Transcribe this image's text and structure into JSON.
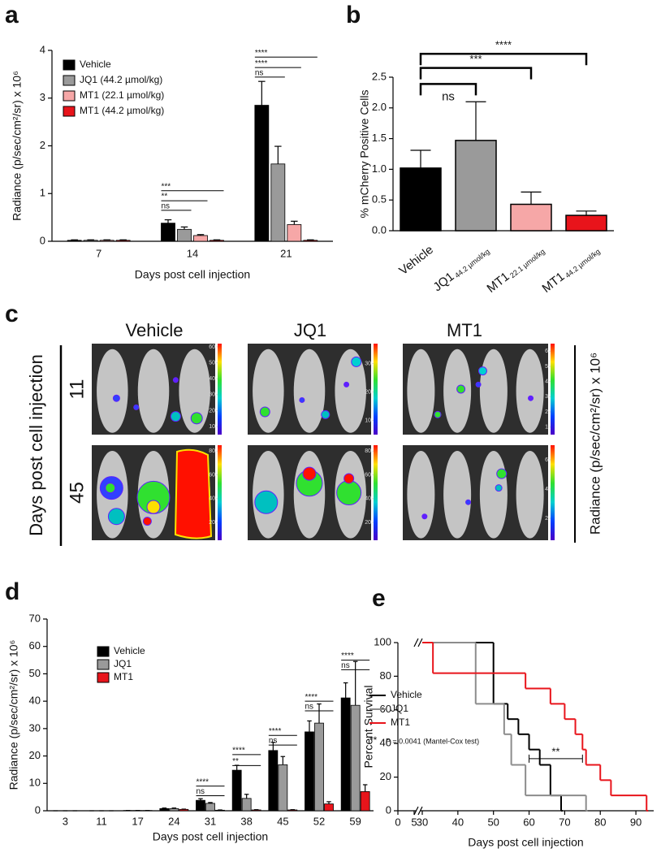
{
  "chart_data": [
    {
      "type": "bar",
      "panel_label": "a",
      "ylabel": "Radiance (p/sec/cm²/sr) x 10⁶",
      "xlabel": "Days post cell injection",
      "categories": [
        "7",
        "14",
        "21"
      ],
      "series": [
        {
          "name": "Vehicle",
          "color": "#000000",
          "values": [
            0.02,
            0.38,
            2.85
          ],
          "errors": [
            0.01,
            0.07,
            0.5
          ]
        },
        {
          "name": "JQ1 (44.2 µmol/kg)",
          "color": "#9a9a9a",
          "values": [
            0.02,
            0.25,
            1.62
          ],
          "errors": [
            0.01,
            0.05,
            0.37
          ]
        },
        {
          "name": "MT1 (22.1 µmol/kg)",
          "color": "#f6a7a7",
          "values": [
            0.02,
            0.12,
            0.35
          ],
          "errors": [
            0.01,
            0.02,
            0.07
          ]
        },
        {
          "name": "MT1 (44.2 µmol/kg)",
          "color": "#e8141b",
          "values": [
            0.02,
            0.02,
            0.02
          ],
          "errors": [
            0.01,
            0.01,
            0.01
          ]
        }
      ],
      "ylim": [
        0,
        4
      ],
      "yticks": [
        0,
        1,
        2,
        3,
        4
      ],
      "legend": "upper left",
      "annotations": [
        {
          "text": "***",
          "category": "14",
          "y": 1.06
        },
        {
          "text": "**",
          "category": "14",
          "y": 0.85
        },
        {
          "text": "ns",
          "category": "14",
          "y": 0.65
        },
        {
          "text": "****",
          "category": "21",
          "y": 3.86
        },
        {
          "text": "****",
          "category": "21",
          "y": 3.64
        },
        {
          "text": "ns",
          "category": "21",
          "y": 3.44
        }
      ]
    },
    {
      "type": "bar",
      "panel_label": "b",
      "ylabel": "% mCherry Positive Cells",
      "categories": [
        "Vehicle",
        "JQ1",
        "MT1",
        "MT1"
      ],
      "category_subscripts": [
        null,
        "44.2 µmol/kg",
        "22.1 µmol/kg",
        "44.2 µmol/kg"
      ],
      "values": [
        1.02,
        1.47,
        0.43,
        0.25
      ],
      "errors": [
        0.29,
        0.63,
        0.2,
        0.07
      ],
      "colors": [
        "#000000",
        "#9a9a9a",
        "#f6a7a7",
        "#e8141b"
      ],
      "ylim": [
        0,
        2.5
      ],
      "yticks": [
        {
          "value": 0,
          "label": "0.0"
        },
        0.5,
        {
          "value": 1,
          "label": "1.0"
        },
        1.5,
        {
          "value": 2,
          "label": "2.0"
        },
        2.5
      ],
      "annotations": [
        {
          "text": "ns",
          "y": 2.39
        },
        {
          "text": "***",
          "y": 2.65
        },
        {
          "text": "****",
          "y": 2.88
        }
      ]
    },
    {
      "type": "bar",
      "panel_label": "d",
      "ylabel": "Radiance (p/sec/cm²/sr) x 10⁶",
      "xlabel": "Days post cell injection",
      "categories": [
        "3",
        "11",
        "17",
        "24",
        "31",
        "38",
        "45",
        "52",
        "59"
      ],
      "series": [
        {
          "name": "Vehicle",
          "color": "#000000",
          "values": [
            0,
            0,
            0.1,
            0.8,
            3.8,
            14.8,
            22,
            28.8,
            41.2
          ],
          "errors": [
            0,
            0,
            0,
            0.2,
            0.6,
            1.8,
            3,
            4,
            5.5
          ]
        },
        {
          "name": "JQ1",
          "color": "#9a9a9a",
          "values": [
            0,
            0,
            0.1,
            0.8,
            2.7,
            4.5,
            16.8,
            32,
            38.5
          ],
          "errors": [
            0,
            0,
            0,
            0.2,
            0.3,
            1.5,
            3,
            7,
            16
          ]
        },
        {
          "name": "MT1",
          "color": "#e8141b",
          "values": [
            0,
            0,
            0.1,
            0.5,
            0.2,
            0.3,
            0.3,
            2.5,
            7
          ],
          "errors": [
            0,
            0,
            0,
            0.1,
            0.1,
            0.1,
            0.1,
            0.8,
            2.5
          ]
        }
      ],
      "ylim": [
        0,
        70
      ],
      "yticks": [
        0,
        10,
        20,
        30,
        40,
        50,
        60,
        70
      ],
      "legend": "upper left",
      "annotations": [
        {
          "text": "****",
          "category": "31",
          "y": 9
        },
        {
          "text": "ns",
          "category": "31",
          "y": 5.5
        },
        {
          "text": "****",
          "category": "38",
          "y": 20.5
        },
        {
          "text": "**",
          "category": "38",
          "y": 16.5
        },
        {
          "text": "****",
          "category": "45",
          "y": 27.5
        },
        {
          "text": "ns",
          "category": "45",
          "y": 24
        },
        {
          "text": "****",
          "category": "52",
          "y": 40
        },
        {
          "text": "ns",
          "category": "52",
          "y": 36.5
        },
        {
          "text": "****",
          "category": "59",
          "y": 55
        },
        {
          "text": "ns",
          "category": "59",
          "y": 51.5
        }
      ]
    },
    {
      "type": "line",
      "drawstyle": "steps-post",
      "panel_label": "e",
      "ylabel": "Percent Survival",
      "xlabel": "Days post cell injection",
      "series": [
        {
          "name": "Vehicle",
          "color": "#000000",
          "x": [
            33,
            50,
            54,
            57,
            60,
            63,
            66,
            69
          ],
          "values": [
            100,
            63.6,
            54.5,
            45.5,
            36.4,
            27.3,
            9.1,
            0
          ]
        },
        {
          "name": "JQ1",
          "color": "#8c8c8c",
          "x": [
            33,
            45,
            53,
            55,
            59,
            76
          ],
          "values": [
            100,
            63.6,
            45.5,
            27.3,
            9.1,
            0
          ]
        },
        {
          "name": "MT1",
          "color": "#e8141b",
          "x": [
            30,
            33,
            59,
            66,
            70,
            73,
            75,
            76,
            80,
            83,
            93
          ],
          "values": [
            100,
            81.8,
            72.7,
            63.6,
            54.5,
            45.5,
            36.4,
            27.3,
            18.2,
            9.1,
            0
          ]
        }
      ],
      "xlim": [
        0,
        95
      ],
      "x_break": [
        5,
        30
      ],
      "xticks": [
        0,
        5,
        30,
        40,
        50,
        60,
        70,
        80,
        90
      ],
      "ylim": [
        0,
        100
      ],
      "yticks": [
        0,
        20,
        40,
        60,
        80,
        100
      ],
      "legend": "lower left",
      "annotations": [
        {
          "text": "**",
          "x": [
            60,
            75
          ],
          "y": 31
        }
      ],
      "note": {
        "marker": "**",
        "text": "P = 0.0041 (Mantel-Cox test)"
      }
    }
  ],
  "figure_c": {
    "panel_label": "c",
    "columns": [
      "Vehicle",
      "JQ1",
      "MT1"
    ],
    "rows": [
      "11",
      "45"
    ],
    "row_axis_label": "Days post cell injection",
    "colorbar_label": "Radiance (p/sec/cm²/sr) x 10⁶",
    "colorbars": [
      [
        {
          "lim": [
            5,
            62
          ],
          "ticks": [
            10,
            20,
            30,
            40,
            50,
            60
          ]
        },
        {
          "lim": [
            5,
            37
          ],
          "ticks": [
            10,
            20,
            30
          ]
        },
        {
          "lim": [
            0.5,
            6.5
          ],
          "ticks": [
            1,
            2,
            3,
            4,
            5,
            6
          ]
        }
      ],
      [
        {
          "lim": [
            5,
            85
          ],
          "ticks": [
            20,
            40,
            60,
            80
          ]
        },
        {
          "lim": [
            5,
            85
          ],
          "ticks": [
            20,
            40,
            60,
            80
          ]
        },
        {
          "lim": [
            0.5,
            7
          ],
          "ticks": [
            2,
            4,
            6
          ]
        }
      ]
    ]
  }
}
